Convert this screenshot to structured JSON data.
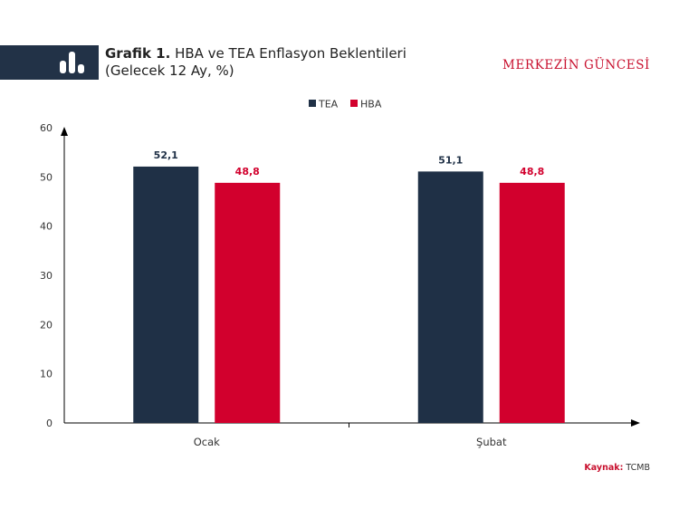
{
  "header": {
    "title_bold": "Grafik 1.",
    "title_rest": "HBA ve TEA Enflasyon Beklentileri",
    "subtitle": "(Gelecek 12 Ay, %)",
    "brand": "MERKEZİN GÜNCESİ",
    "icon": "bar-chart-icon"
  },
  "source": {
    "label": "Kaynak:",
    "value": "TCMB"
  },
  "chart_data": {
    "type": "bar",
    "title": "Grafik 1. HBA ve TEA Enflasyon Beklentileri",
    "subtitle": "(Gelecek 12 Ay, %)",
    "categories": [
      "Ocak",
      "Şubat"
    ],
    "series": [
      {
        "name": "TEA",
        "values": [
          52.1,
          51.1
        ],
        "labels": [
          "52,1",
          "51,1"
        ],
        "color": "#1f3046"
      },
      {
        "name": "HBA",
        "values": [
          48.8,
          48.8
        ],
        "labels": [
          "48,8",
          "48,8"
        ],
        "color": "#d2002d"
      }
    ],
    "ylim": [
      0,
      60
    ],
    "yticks": [
      0,
      10,
      20,
      30,
      40,
      50,
      60
    ],
    "xlabel": "",
    "ylabel": "",
    "grid": false,
    "legend": "top-center"
  }
}
